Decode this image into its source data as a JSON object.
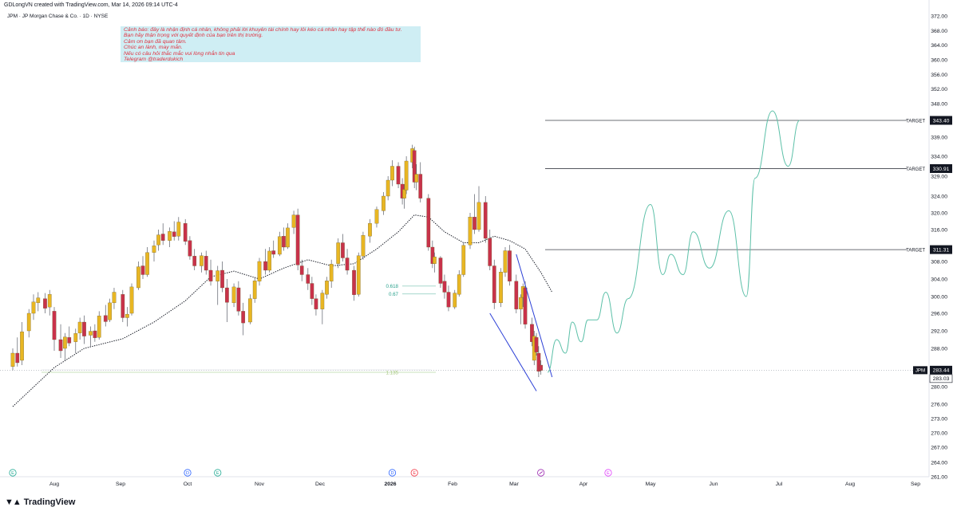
{
  "header": {
    "creator": "GDLongVN created with TradingView.com, Mar 14, 2026 09:14 UTC-4",
    "symbol": "JPM · JP Morgan Chase & Co. · 1D · NYSE"
  },
  "note": {
    "lines": [
      "Cảnh báo: đây là nhận định cá nhân, không phải lời khuyên tài chính hay lôi kéo cá nhân hay tập thể nào đó đầu tư.",
      "Bạn hãy thận trọng với quyết định của bạn trên thị trường.",
      "Cảm ơn bạn đã quan tâm.",
      "Chúc an lành, may mắn.",
      "Nếu có câu hỏi thắc mắc vui lòng nhắn tin qua",
      "Telegram @traderdukich"
    ]
  },
  "brand": {
    "name": "TradingView"
  },
  "colors": {
    "up": "#e8b623",
    "down": "#c8324a",
    "ma": "#131722",
    "projection": "#5cc0a8",
    "wedge": "#2b3fd6"
  },
  "chart_data": {
    "type": "candlestick",
    "symbol": "JPM",
    "y_ticks": [
      372.0,
      368.0,
      364.0,
      360.0,
      356.0,
      352.0,
      348.0,
      343.4,
      339.0,
      334.0,
      329.0,
      324.0,
      320.0,
      316.0,
      312.0,
      308.0,
      304.0,
      300.0,
      296.0,
      292.0,
      288.0,
      284.0,
      280.0,
      276.0,
      273.0,
      270.0,
      267.0,
      264.0,
      261.0
    ],
    "x_ticks": [
      "Aug",
      "Sep",
      "Oct",
      "Nov",
      "Dec",
      "2026",
      "Feb",
      "Mar",
      "Apr",
      "May",
      "Jun",
      "Jul",
      "Aug",
      "Sep"
    ],
    "targets": [
      {
        "label": "TARGET",
        "value": 343.4
      },
      {
        "label": "TARGET",
        "value": 330.91
      },
      {
        "label": "TARGET",
        "value": 311.31
      }
    ],
    "price_labels": [
      {
        "label": "JPM",
        "value": 283.44
      },
      {
        "label": "",
        "value": 283.03
      }
    ],
    "fib_levels": [
      {
        "label": "0.618",
        "value": 302.4
      },
      {
        "label": "0.67",
        "value": 300.6
      },
      {
        "label": "1.135",
        "value": 283.0
      }
    ],
    "events": [
      {
        "date": "Jul 14",
        "type": "E"
      },
      {
        "date": "Oct 1",
        "type": "D"
      },
      {
        "date": "Oct 14",
        "type": "E"
      },
      {
        "date": "Jan 2",
        "type": "D"
      },
      {
        "date": "Jan 13",
        "type": "E"
      },
      {
        "date": "Mar 13",
        "type": "split"
      },
      {
        "date": "Apr 14",
        "type": "E"
      }
    ],
    "candles": [
      {
        "d": "Jul 14",
        "o": 284.2,
        "h": 288.0,
        "l": 283.4,
        "c": 287.0
      },
      {
        "d": "Jul 16",
        "o": 287.0,
        "h": 290.5,
        "l": 284.2,
        "c": 285.0
      },
      {
        "d": "Jul 18",
        "o": 285.5,
        "h": 294.0,
        "l": 284.5,
        "c": 291.8
      },
      {
        "d": "Jul 21",
        "o": 292.0,
        "h": 297.0,
        "l": 290.5,
        "c": 296.0
      },
      {
        "d": "Jul 23",
        "o": 296.0,
        "h": 300.5,
        "l": 294.5,
        "c": 298.7
      },
      {
        "d": "Jul 25",
        "o": 298.5,
        "h": 301.0,
        "l": 296.5,
        "c": 299.7
      },
      {
        "d": "Jul 28",
        "o": 299.5,
        "h": 300.8,
        "l": 296.0,
        "c": 297.2
      },
      {
        "d": "Jul 30",
        "o": 297.5,
        "h": 301.5,
        "l": 295.5,
        "c": 300.5
      },
      {
        "d": "Aug 1",
        "o": 296.5,
        "h": 297.5,
        "l": 287.5,
        "c": 290.0
      },
      {
        "d": "Aug 4",
        "o": 290.0,
        "h": 293.5,
        "l": 286.0,
        "c": 287.5
      },
      {
        "d": "Aug 6",
        "o": 288.0,
        "h": 291.5,
        "l": 285.5,
        "c": 290.6
      },
      {
        "d": "Aug 8",
        "o": 290.5,
        "h": 293.0,
        "l": 288.5,
        "c": 289.2
      },
      {
        "d": "Aug 11",
        "o": 289.5,
        "h": 292.5,
        "l": 287.0,
        "c": 291.4
      },
      {
        "d": "Aug 13",
        "o": 291.5,
        "h": 295.0,
        "l": 290.0,
        "c": 294.0
      },
      {
        "d": "Aug 15",
        "o": 294.0,
        "h": 295.5,
        "l": 289.0,
        "c": 290.8
      },
      {
        "d": "Aug 18",
        "o": 291.0,
        "h": 293.0,
        "l": 288.5,
        "c": 291.9
      },
      {
        "d": "Aug 20",
        "o": 292.0,
        "h": 293.5,
        "l": 289.5,
        "c": 290.4
      },
      {
        "d": "Aug 22",
        "o": 290.5,
        "h": 296.5,
        "l": 290.0,
        "c": 295.4
      },
      {
        "d": "Aug 25",
        "o": 295.5,
        "h": 298.0,
        "l": 293.0,
        "c": 294.1
      },
      {
        "d": "Aug 27",
        "o": 294.5,
        "h": 299.5,
        "l": 294.0,
        "c": 298.5
      },
      {
        "d": "Aug 29",
        "o": 298.5,
        "h": 302.0,
        "l": 297.0,
        "c": 301.0
      },
      {
        "d": "Sep 2",
        "o": 300.5,
        "h": 301.5,
        "l": 294.0,
        "c": 295.0
      },
      {
        "d": "Sep 4",
        "o": 295.0,
        "h": 297.5,
        "l": 293.0,
        "c": 295.8
      },
      {
        "d": "Sep 6",
        "o": 296.0,
        "h": 303.0,
        "l": 295.5,
        "c": 302.2
      },
      {
        "d": "Sep 9",
        "o": 302.0,
        "h": 308.0,
        "l": 301.5,
        "c": 306.8
      },
      {
        "d": "Sep 11",
        "o": 307.0,
        "h": 309.5,
        "l": 304.0,
        "c": 305.0
      },
      {
        "d": "Sep 13",
        "o": 305.0,
        "h": 312.0,
        "l": 304.5,
        "c": 310.5
      },
      {
        "d": "Sep 16",
        "o": 310.5,
        "h": 313.5,
        "l": 308.0,
        "c": 312.3
      },
      {
        "d": "Sep 18",
        "o": 312.5,
        "h": 316.0,
        "l": 311.0,
        "c": 314.8
      },
      {
        "d": "Sep 20",
        "o": 315.0,
        "h": 317.5,
        "l": 312.5,
        "c": 313.5
      },
      {
        "d": "Sep 23",
        "o": 313.5,
        "h": 316.5,
        "l": 312.0,
        "c": 315.6
      },
      {
        "d": "Sep 25",
        "o": 315.5,
        "h": 318.0,
        "l": 313.5,
        "c": 314.4
      },
      {
        "d": "Sep 27",
        "o": 314.5,
        "h": 319.0,
        "l": 313.5,
        "c": 317.8
      },
      {
        "d": "Sep 30",
        "o": 317.5,
        "h": 318.5,
        "l": 312.5,
        "c": 313.3
      },
      {
        "d": "Oct 2",
        "o": 313.5,
        "h": 314.5,
        "l": 308.5,
        "c": 309.5
      },
      {
        "d": "Oct 4",
        "o": 309.5,
        "h": 311.5,
        "l": 306.0,
        "c": 307.0
      },
      {
        "d": "Oct 7",
        "o": 307.0,
        "h": 310.5,
        "l": 305.5,
        "c": 309.6
      },
      {
        "d": "Oct 9",
        "o": 309.5,
        "h": 311.0,
        "l": 305.0,
        "c": 306.0
      },
      {
        "d": "Oct 11",
        "o": 306.0,
        "h": 308.5,
        "l": 302.5,
        "c": 303.5
      },
      {
        "d": "Oct 14",
        "o": 303.5,
        "h": 307.0,
        "l": 298.0,
        "c": 305.9
      },
      {
        "d": "Oct 16",
        "o": 306.0,
        "h": 308.0,
        "l": 301.0,
        "c": 302.0
      },
      {
        "d": "Oct 18",
        "o": 302.0,
        "h": 304.0,
        "l": 294.0,
        "c": 298.6
      },
      {
        "d": "Oct 21",
        "o": 298.5,
        "h": 303.0,
        "l": 297.5,
        "c": 302.2
      },
      {
        "d": "Oct 23",
        "o": 302.0,
        "h": 303.5,
        "l": 295.5,
        "c": 296.5
      },
      {
        "d": "Oct 25",
        "o": 296.5,
        "h": 298.5,
        "l": 291.0,
        "c": 293.8
      },
      {
        "d": "Oct 28",
        "o": 294.0,
        "h": 300.5,
        "l": 293.5,
        "c": 299.5
      },
      {
        "d": "Oct 30",
        "o": 299.5,
        "h": 304.5,
        "l": 298.5,
        "c": 303.6
      },
      {
        "d": "Nov 1",
        "o": 303.5,
        "h": 309.0,
        "l": 302.5,
        "c": 308.0
      },
      {
        "d": "Nov 4",
        "o": 308.0,
        "h": 311.5,
        "l": 305.0,
        "c": 306.0
      },
      {
        "d": "Nov 6",
        "o": 306.0,
        "h": 312.0,
        "l": 305.5,
        "c": 310.9
      },
      {
        "d": "Nov 8",
        "o": 311.0,
        "h": 313.5,
        "l": 309.0,
        "c": 310.0
      },
      {
        "d": "Nov 11",
        "o": 310.0,
        "h": 315.5,
        "l": 309.5,
        "c": 314.4
      },
      {
        "d": "Nov 13",
        "o": 314.5,
        "h": 316.5,
        "l": 311.0,
        "c": 312.0
      },
      {
        "d": "Nov 15",
        "o": 312.0,
        "h": 317.5,
        "l": 311.5,
        "c": 316.4
      },
      {
        "d": "Nov 18",
        "o": 316.5,
        "h": 320.5,
        "l": 315.0,
        "c": 319.5
      },
      {
        "d": "Nov 20",
        "o": 319.5,
        "h": 321.0,
        "l": 306.0,
        "c": 307.2
      },
      {
        "d": "Nov 22",
        "o": 307.0,
        "h": 308.5,
        "l": 303.5,
        "c": 305.0
      },
      {
        "d": "Nov 25",
        "o": 305.0,
        "h": 306.5,
        "l": 301.5,
        "c": 303.0
      },
      {
        "d": "Nov 27",
        "o": 303.0,
        "h": 304.5,
        "l": 298.0,
        "c": 299.5
      },
      {
        "d": "Nov 29",
        "o": 299.5,
        "h": 300.5,
        "l": 295.5,
        "c": 297.0
      },
      {
        "d": "Dec 2",
        "o": 297.0,
        "h": 301.5,
        "l": 293.5,
        "c": 300.8
      },
      {
        "d": "Dec 4",
        "o": 300.5,
        "h": 304.5,
        "l": 299.5,
        "c": 303.6
      },
      {
        "d": "Dec 6",
        "o": 303.5,
        "h": 308.5,
        "l": 302.0,
        "c": 307.4
      },
      {
        "d": "Dec 9",
        "o": 307.5,
        "h": 314.0,
        "l": 306.5,
        "c": 313.0
      },
      {
        "d": "Dec 11",
        "o": 313.0,
        "h": 315.0,
        "l": 308.0,
        "c": 309.0
      },
      {
        "d": "Dec 13",
        "o": 309.0,
        "h": 311.5,
        "l": 305.0,
        "c": 306.0
      },
      {
        "d": "Dec 16",
        "o": 306.0,
        "h": 307.0,
        "l": 299.0,
        "c": 300.4
      },
      {
        "d": "Dec 18",
        "o": 300.5,
        "h": 310.5,
        "l": 300.0,
        "c": 309.6
      },
      {
        "d": "Dec 20",
        "o": 309.5,
        "h": 315.5,
        "l": 308.5,
        "c": 314.7
      },
      {
        "d": "Dec 23",
        "o": 314.5,
        "h": 318.5,
        "l": 313.0,
        "c": 317.5
      },
      {
        "d": "Dec 26",
        "o": 317.5,
        "h": 321.5,
        "l": 316.5,
        "c": 320.8
      },
      {
        "d": "Dec 29",
        "o": 320.5,
        "h": 325.0,
        "l": 319.5,
        "c": 324.0
      },
      {
        "d": "Dec 31",
        "o": 324.0,
        "h": 329.0,
        "l": 323.0,
        "c": 328.0
      },
      {
        "d": "Jan 2",
        "o": 328.0,
        "h": 333.0,
        "l": 326.5,
        "c": 331.5
      },
      {
        "d": "Jan 5",
        "o": 331.5,
        "h": 332.5,
        "l": 326.0,
        "c": 327.0
      },
      {
        "d": "Jan 7",
        "o": 327.0,
        "h": 328.5,
        "l": 322.0,
        "c": 323.5
      },
      {
        "d": "Jan 8",
        "o": 323.5,
        "h": 327.0,
        "l": 321.0,
        "c": 325.7
      },
      {
        "d": "Jan 9",
        "o": 325.5,
        "h": 334.0,
        "l": 324.5,
        "c": 332.8
      },
      {
        "d": "Jan 12",
        "o": 332.5,
        "h": 337.0,
        "l": 331.0,
        "c": 336.0
      },
      {
        "d": "Jan 13",
        "o": 335.5,
        "h": 336.5,
        "l": 326.0,
        "c": 327.5
      },
      {
        "d": "Jan 14",
        "o": 327.5,
        "h": 332.0,
        "l": 325.5,
        "c": 329.5
      },
      {
        "d": "Jan 16",
        "o": 329.5,
        "h": 332.5,
        "l": 322.5,
        "c": 323.5
      },
      {
        "d": "Jan 20",
        "o": 323.5,
        "h": 324.5,
        "l": 311.0,
        "c": 312.0
      },
      {
        "d": "Jan 22",
        "o": 312.0,
        "h": 313.5,
        "l": 306.5,
        "c": 307.5
      },
      {
        "d": "Jan 23",
        "o": 307.5,
        "h": 310.5,
        "l": 305.5,
        "c": 309.3
      },
      {
        "d": "Jan 26",
        "o": 309.0,
        "h": 309.5,
        "l": 302.0,
        "c": 303.0
      },
      {
        "d": "Jan 28",
        "o": 303.5,
        "h": 305.0,
        "l": 299.5,
        "c": 301.0
      },
      {
        "d": "Jan 30",
        "o": 301.0,
        "h": 302.5,
        "l": 296.5,
        "c": 297.5
      },
      {
        "d": "Feb 2",
        "o": 297.5,
        "h": 301.5,
        "l": 297.0,
        "c": 300.8
      },
      {
        "d": "Feb 4",
        "o": 300.5,
        "h": 306.0,
        "l": 300.0,
        "c": 305.0
      },
      {
        "d": "Feb 6",
        "o": 305.0,
        "h": 313.0,
        "l": 304.5,
        "c": 312.4
      },
      {
        "d": "Feb 9",
        "o": 312.5,
        "h": 320.0,
        "l": 311.5,
        "c": 319.0
      },
      {
        "d": "Feb 11",
        "o": 319.0,
        "h": 324.5,
        "l": 315.0,
        "c": 316.0
      },
      {
        "d": "Feb 13",
        "o": 316.0,
        "h": 326.5,
        "l": 315.5,
        "c": 322.5
      },
      {
        "d": "Feb 16",
        "o": 322.5,
        "h": 324.0,
        "l": 313.0,
        "c": 314.0
      },
      {
        "d": "Feb 18",
        "o": 314.0,
        "h": 316.0,
        "l": 306.0,
        "c": 307.0
      },
      {
        "d": "Feb 20",
        "o": 307.0,
        "h": 308.5,
        "l": 297.0,
        "c": 298.5
      },
      {
        "d": "Feb 23",
        "o": 298.5,
        "h": 306.5,
        "l": 297.5,
        "c": 305.6
      },
      {
        "d": "Feb 25",
        "o": 305.5,
        "h": 312.0,
        "l": 304.5,
        "c": 311.0
      },
      {
        "d": "Feb 27",
        "o": 311.0,
        "h": 312.5,
        "l": 302.5,
        "c": 303.5
      },
      {
        "d": "Mar 2",
        "o": 303.5,
        "h": 305.0,
        "l": 296.0,
        "c": 297.0
      },
      {
        "d": "Mar 4",
        "o": 297.0,
        "h": 300.5,
        "l": 293.5,
        "c": 299.8
      },
      {
        "d": "Mar 5",
        "o": 299.8,
        "h": 303.0,
        "l": 297.5,
        "c": 302.3
      },
      {
        "d": "Mar 6",
        "o": 302.0,
        "h": 303.5,
        "l": 292.5,
        "c": 293.5
      },
      {
        "d": "Mar 9",
        "o": 293.5,
        "h": 295.0,
        "l": 288.5,
        "c": 289.5
      },
      {
        "d": "Mar 10",
        "o": 285.5,
        "h": 292.0,
        "l": 284.5,
        "c": 290.8
      },
      {
        "d": "Mar 11",
        "o": 290.5,
        "h": 291.5,
        "l": 286.5,
        "c": 287.2
      },
      {
        "d": "Mar 12",
        "o": 287.0,
        "h": 288.5,
        "l": 282.0,
        "c": 283.2
      },
      {
        "d": "Mar 13",
        "o": 284.5,
        "h": 285.5,
        "l": 282.5,
        "c": 283.4
      }
    ],
    "ma_points": [
      {
        "d": "Jul 14",
        "v": 275.5
      },
      {
        "d": "Aug 1",
        "v": 284.0
      },
      {
        "d": "Aug 15",
        "v": 288.0
      },
      {
        "d": "Sep 2",
        "v": 290.2
      },
      {
        "d": "Sep 16",
        "v": 294.0
      },
      {
        "d": "Sep 30",
        "v": 299.0
      },
      {
        "d": "Oct 11",
        "v": 304.5
      },
      {
        "d": "Oct 21",
        "v": 305.8
      },
      {
        "d": "Nov 1",
        "v": 304.0
      },
      {
        "d": "Nov 13",
        "v": 306.5
      },
      {
        "d": "Nov 25",
        "v": 308.5
      },
      {
        "d": "Dec 6",
        "v": 307.0
      },
      {
        "d": "Dec 16",
        "v": 307.5
      },
      {
        "d": "Dec 26",
        "v": 311.5
      },
      {
        "d": "Jan 5",
        "v": 315.5
      },
      {
        "d": "Jan 13",
        "v": 319.5
      },
      {
        "d": "Jan 20",
        "v": 319.0
      },
      {
        "d": "Jan 28",
        "v": 315.5
      },
      {
        "d": "Feb 6",
        "v": 313.0
      },
      {
        "d": "Feb 13",
        "v": 313.0
      },
      {
        "d": "Feb 20",
        "v": 314.5
      },
      {
        "d": "Feb 27",
        "v": 313.5
      },
      {
        "d": "Mar 6",
        "v": 311.5
      },
      {
        "d": "Mar 13",
        "v": 305.5
      },
      {
        "d": "Mar 18",
        "v": 301.0
      }
    ],
    "projection": [
      {
        "d": "Mar 16",
        "v": 283.0
      },
      {
        "d": "Mar 20",
        "v": 290.0
      },
      {
        "d": "Mar 24",
        "v": 287.0
      },
      {
        "d": "Mar 27",
        "v": 294.0
      },
      {
        "d": "Mar 31",
        "v": 289.5
      },
      {
        "d": "Apr 3",
        "v": 294.5
      },
      {
        "d": "Apr 7",
        "v": 294.5
      },
      {
        "d": "Apr 11",
        "v": 301.0
      },
      {
        "d": "Apr 16",
        "v": 291.5
      },
      {
        "d": "Apr 21",
        "v": 299.5
      },
      {
        "d": "May 1",
        "v": 322.0
      },
      {
        "d": "May 7",
        "v": 305.0
      },
      {
        "d": "May 11",
        "v": 310.0
      },
      {
        "d": "May 17",
        "v": 305.0
      },
      {
        "d": "May 22",
        "v": 315.5
      },
      {
        "d": "May 30",
        "v": 306.5
      },
      {
        "d": "Jun 8",
        "v": 320.5
      },
      {
        "d": "Jun 16",
        "v": 300.0
      },
      {
        "d": "Jun 20",
        "v": 328.5
      },
      {
        "d": "Jun 28",
        "v": 346.0
      },
      {
        "d": "Jul 5",
        "v": 331.5
      },
      {
        "d": "Jul 10",
        "v": 343.4
      }
    ],
    "wedge_lines": [
      {
        "from": {
          "d": "Feb 18",
          "v": 296.0
        },
        "to": {
          "d": "Mar 11",
          "v": 279.0
        }
      },
      {
        "from": {
          "d": "Mar 2",
          "v": 310.0
        },
        "to": {
          "d": "Mar 18",
          "v": 282.0
        }
      }
    ]
  }
}
